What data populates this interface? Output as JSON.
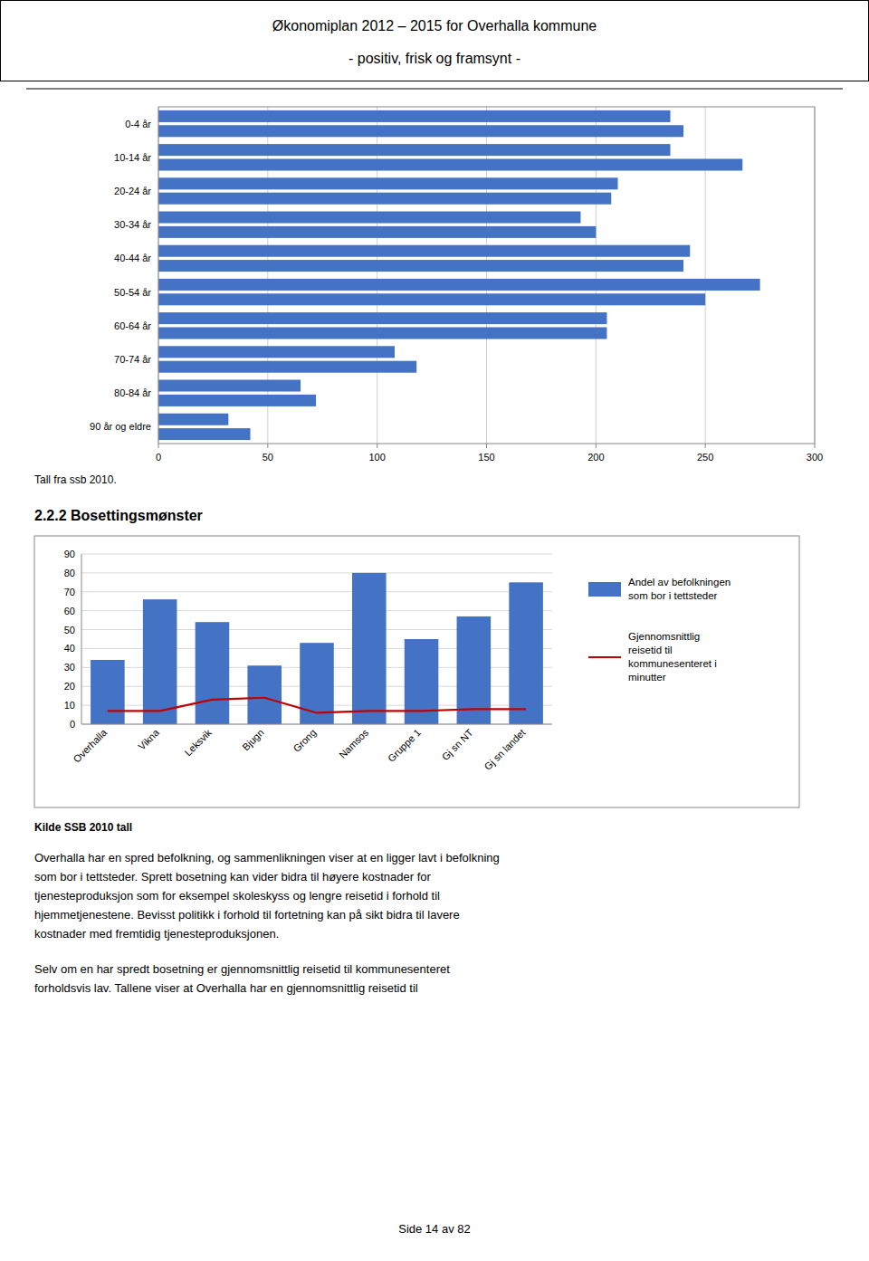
{
  "title": "Økonomiplan 2012 – 2015 for Overhalla kommune",
  "subtitle": "- positiv, frisk og framsynt -",
  "heading": "2.2.2 Bosettingsmønster",
  "body": [
    "Overhalla har en spred befolkning, og sammenlikningen viser at en ligger lavt i befolkning\nsom bor i tettsteder. Sprett bosetning kan vider bidra til høyere kostnader for\ntjenesteproduksjon som for eksempel skoleskyss og lengre reisetid i forhold til\nhjemmetjenestene. Bevisst politikk i forhold til fortetning kan på sikt bidra til lavere\nkostnader med fremtidig tjenesteproduksjonen.",
    "Selv om en har spredt bosetning er gjennomsnittlig reisetid til kommunesenteret\nforholdsvis lav.  Tallene viser at Overhalla har en gjennomsnittlig reisetid til"
  ],
  "footer": "Side 14 av 82",
  "chart_data": [
    {
      "type": "bar",
      "orientation": "horizontal",
      "categories": [
        "90 år og eldre",
        "80-84 år",
        "70-74 år",
        "60-64 år",
        "50-54 år",
        "40-44 år",
        "30-34 år",
        "20-24 år",
        "10-14 år",
        "0-4 år"
      ],
      "series": [
        {
          "color": "#4472C4",
          "values": [
            32,
            65,
            108,
            205,
            275,
            243,
            193,
            210,
            234,
            234
          ]
        },
        {
          "color": "#4472C4",
          "values": [
            42,
            72,
            118,
            205,
            250,
            240,
            200,
            207,
            267,
            240
          ]
        }
      ],
      "xlim": [
        0,
        300
      ],
      "xticks": [
        0,
        50,
        100,
        150,
        200,
        250,
        300
      ],
      "grid": true,
      "annotations": [
        "Tall fra ssb 2010."
      ]
    },
    {
      "type": "bar",
      "categories": [
        "Overhalla",
        "Vikna",
        "Leksvik",
        "Bjugn",
        "Grong",
        "Namsos",
        "Gruppe 1",
        "Gj sn NT",
        "Gj sn landet"
      ],
      "series": [
        {
          "name": "Andel av befolkningen\nsom bor i tettsteder",
          "type": "bar",
          "color": "#4472C4",
          "values": [
            34,
            66,
            54,
            31,
            43,
            80,
            45,
            57,
            75
          ]
        },
        {
          "name": "Gjennomsnittlig\nreisetid til\nkommunesenteret i\nminutter",
          "type": "line",
          "color": "#C00000",
          "values": [
            7,
            7,
            13,
            14,
            6,
            7,
            7,
            8,
            8
          ]
        }
      ],
      "ylim": [
        0,
        90
      ],
      "yticks": [
        0,
        10,
        20,
        30,
        40,
        50,
        60,
        70,
        80,
        90
      ],
      "grid": true,
      "legend": "right",
      "annotations": [
        "Kilde SSB 2010 tall"
      ]
    }
  ]
}
